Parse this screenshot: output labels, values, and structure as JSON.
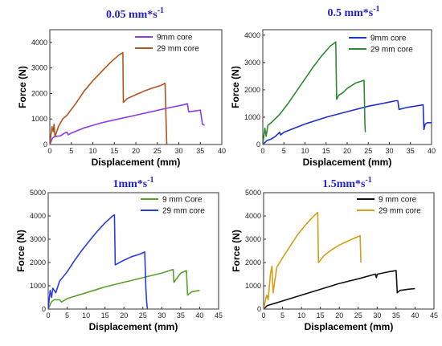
{
  "chart_data": [
    {
      "type": "line",
      "title": "0.05 mm*s",
      "title_superscript": "-1",
      "xlabel": "Displacement (mm)",
      "ylabel": "Force (N)",
      "xlim": [
        0,
        40
      ],
      "ylim": [
        0,
        4500
      ],
      "xticks": [
        0,
        5,
        10,
        15,
        20,
        25,
        30,
        35,
        40
      ],
      "yticks": [
        0,
        1000,
        2000,
        3000,
        4000
      ],
      "legend_position": "top-right",
      "series": [
        {
          "name": "9mm core",
          "color": "#8a3cf0",
          "x": [
            0,
            0.6,
            1.0,
            1.5,
            2.0,
            2.5,
            3.0,
            3.5,
            4.0,
            4.3,
            5,
            8,
            12,
            16,
            20,
            24,
            28,
            31,
            32,
            32.3,
            33,
            34,
            35,
            35.5,
            36
          ],
          "y": [
            0,
            250,
            300,
            320,
            330,
            340,
            400,
            450,
            480,
            380,
            450,
            650,
            850,
            1000,
            1150,
            1300,
            1450,
            1550,
            1600,
            1280,
            1300,
            1320,
            1350,
            800,
            750
          ]
        },
        {
          "name": "29 mm core",
          "color": "#b3541e",
          "x": [
            0,
            0.5,
            0.8,
            1.0,
            1.2,
            2,
            3,
            4,
            6,
            8,
            10,
            12,
            14,
            16,
            17,
            17.1,
            18,
            20,
            22,
            24,
            26,
            26.8,
            27.0,
            27.2
          ],
          "y": [
            0,
            700,
            500,
            800,
            300,
            700,
            1000,
            1150,
            1600,
            2100,
            2500,
            2850,
            3200,
            3500,
            3600,
            1650,
            1800,
            1950,
            2100,
            2220,
            2330,
            2400,
            1100,
            0
          ]
        }
      ]
    },
    {
      "type": "line",
      "title": "0.5 mm*s",
      "title_superscript": "-1",
      "xlabel": "Displacement (mm)",
      "ylabel": "Force (N)",
      "xlim": [
        0,
        40
      ],
      "ylim": [
        0,
        4200
      ],
      "xticks": [
        0,
        5,
        10,
        15,
        20,
        25,
        30,
        35,
        40
      ],
      "yticks": [
        0,
        1000,
        2000,
        3000,
        4000
      ],
      "legend_position": "top-right",
      "series": [
        {
          "name": "9mm core",
          "color": "#1f2fd0",
          "x": [
            0,
            1,
            2,
            3,
            4,
            4.2,
            5,
            10,
            15,
            20,
            25,
            30,
            31.5,
            32,
            32.3,
            34,
            36,
            38,
            38.2,
            38.5,
            39,
            40
          ],
          "y": [
            0,
            150,
            200,
            300,
            450,
            350,
            450,
            750,
            1000,
            1200,
            1400,
            1550,
            1600,
            1600,
            1280,
            1350,
            1400,
            1450,
            550,
            750,
            800,
            800
          ]
        },
        {
          "name": "29 mm core",
          "color": "#2e8a2e",
          "x": [
            0,
            0.5,
            0.8,
            1.2,
            2,
            4,
            6,
            8,
            10,
            12,
            14,
            16,
            17.3,
            17.5,
            18,
            19,
            20,
            22,
            24,
            24.2,
            24.3
          ],
          "y": [
            0,
            600,
            300,
            700,
            800,
            1100,
            1500,
            1950,
            2400,
            2850,
            3250,
            3600,
            3750,
            1650,
            1800,
            1900,
            2050,
            2250,
            2350,
            700,
            450
          ]
        }
      ]
    },
    {
      "type": "line",
      "title": "1mm*s",
      "title_superscript": "-1",
      "xlabel": "Displacement (mm)",
      "ylabel": "Force (N)",
      "xlim": [
        0,
        45
      ],
      "ylim": [
        0,
        5000
      ],
      "xticks": [
        0,
        5,
        10,
        15,
        20,
        25,
        30,
        35,
        40,
        45
      ],
      "yticks": [
        0,
        1000,
        2000,
        3000,
        4000,
        5000
      ],
      "legend_position": "top-right",
      "series": [
        {
          "name": "9 mm Core",
          "color": "#5aa02c",
          "x": [
            0,
            0.8,
            1.5,
            3,
            3.5,
            5,
            10,
            15,
            20,
            25,
            30,
            33,
            33.2,
            35,
            36.5,
            36.8,
            38,
            40
          ],
          "y": [
            0,
            300,
            400,
            400,
            300,
            450,
            700,
            950,
            1150,
            1350,
            1550,
            1700,
            1150,
            1550,
            1650,
            600,
            750,
            800
          ]
        },
        {
          "name": "29 mm core",
          "color": "#2a3ce0",
          "x": [
            0,
            0.5,
            0.9,
            1.2,
            2,
            3,
            5,
            7,
            9,
            11,
            13,
            15,
            17,
            17.5,
            17.7,
            20,
            22,
            24,
            25.5,
            25.8,
            26,
            26.2
          ],
          "y": [
            0,
            800,
            500,
            900,
            700,
            1200,
            1600,
            2100,
            2550,
            2950,
            3350,
            3700,
            4000,
            4050,
            1900,
            2100,
            2250,
            2350,
            2450,
            900,
            300,
            0
          ]
        }
      ]
    },
    {
      "type": "line",
      "title": "1.5mm*s",
      "title_superscript": "-1",
      "xlabel": "Displacement (mm)",
      "ylabel": "Force (N)",
      "xlim": [
        0,
        45
      ],
      "ylim": [
        0,
        5000
      ],
      "xticks": [
        0,
        5,
        10,
        15,
        20,
        25,
        30,
        35,
        40,
        45
      ],
      "yticks": [
        0,
        1000,
        2000,
        3000,
        4000,
        5000
      ],
      "legend_position": "top-right",
      "series": [
        {
          "name": "9 mm core",
          "color": "#111111",
          "x": [
            0,
            1,
            3,
            5,
            10,
            15,
            20,
            25,
            29.5,
            29.8,
            30,
            33,
            35,
            35.3,
            36,
            38,
            40
          ],
          "y": [
            0,
            150,
            250,
            350,
            600,
            850,
            1100,
            1300,
            1500,
            1350,
            1500,
            1600,
            1650,
            700,
            800,
            850,
            880
          ]
        },
        {
          "name": "29 mm core",
          "color": "#d4a017",
          "x": [
            0,
            0.8,
            1.2,
            1.8,
            2.2,
            2.5,
            3.5,
            5,
            7,
            9,
            11,
            13,
            14.3,
            14.5,
            16,
            18,
            20,
            22,
            24,
            25.5,
            25.7
          ],
          "y": [
            0,
            600,
            400,
            1500,
            1850,
            700,
            1800,
            2200,
            2700,
            3200,
            3600,
            3950,
            4150,
            2000,
            2300,
            2550,
            2750,
            2900,
            3050,
            3150,
            2000
          ]
        }
      ]
    }
  ]
}
